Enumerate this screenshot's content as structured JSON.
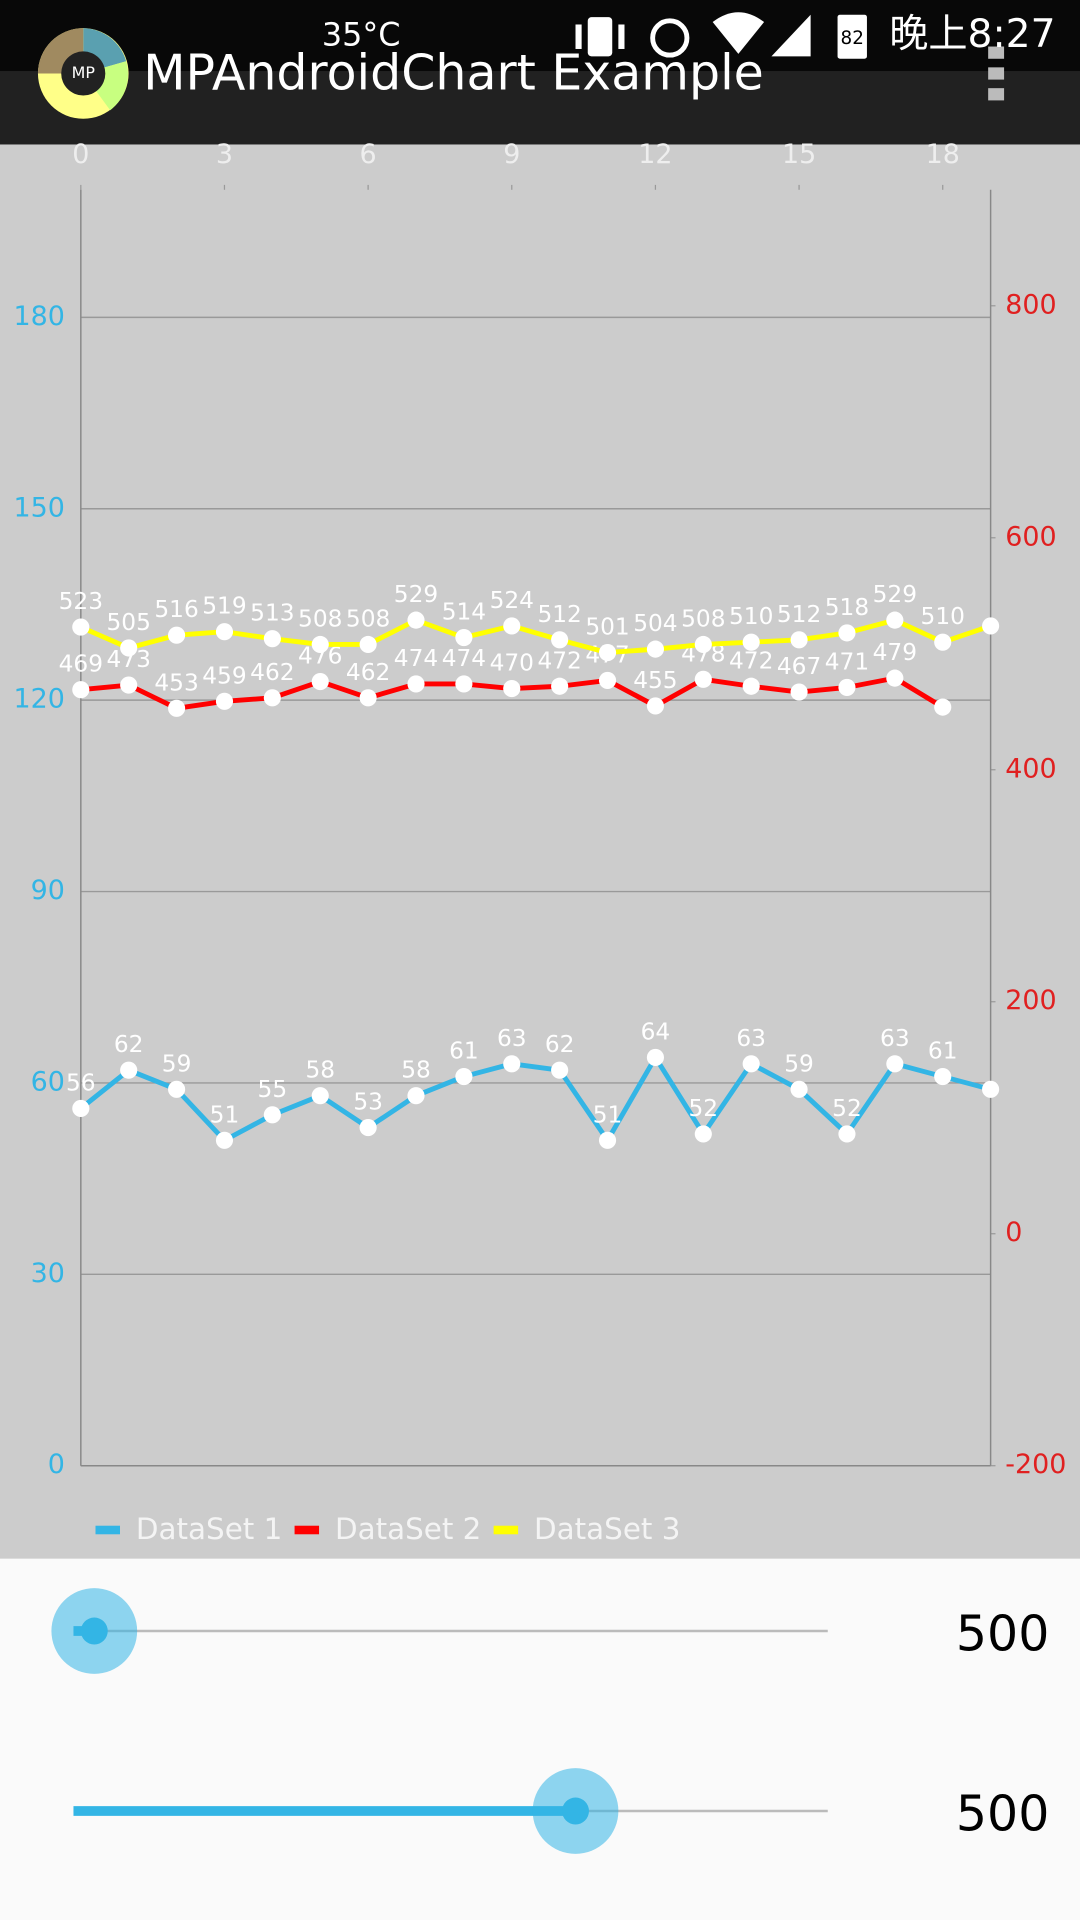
{
  "status_bar": {
    "temperature": "35°C",
    "battery": "82",
    "time": "晚上8:27"
  },
  "app_bar": {
    "logo": "MP",
    "title": "MPAndroidChart Example"
  },
  "chart_data": {
    "type": "line",
    "x": [
      0,
      1,
      2,
      3,
      4,
      5,
      6,
      7,
      8,
      9,
      10,
      11,
      12,
      13,
      14,
      15,
      16,
      17,
      18,
      19
    ],
    "xlim": [
      0,
      19
    ],
    "xticks": [
      0,
      3,
      6,
      9,
      12,
      15,
      18
    ],
    "ylim": [
      0,
      200
    ],
    "yticks": [
      0,
      30,
      60,
      90,
      120,
      150,
      180
    ],
    "y2lim": [
      -200,
      900
    ],
    "y2ticks": [
      -200,
      0,
      200,
      400,
      600,
      800
    ],
    "y_color": "#33b5e5",
    "y2_color": "#e02020",
    "grid": true,
    "legend": "bottom-left",
    "series": [
      {
        "name": "DataSet 1",
        "color": "#33b5e5",
        "axis": "y",
        "values": [
          56,
          62,
          59,
          51,
          55,
          58,
          53,
          58,
          61,
          63,
          62,
          51,
          64,
          52,
          63,
          59,
          52,
          63,
          61,
          59
        ]
      },
      {
        "name": "DataSet 2",
        "color": "#ff0000",
        "axis": "y2",
        "values": [
          469,
          473,
          453,
          459,
          462,
          476,
          462,
          474,
          474,
          470,
          472,
          477,
          455,
          478,
          472,
          467,
          471,
          479,
          454,
          null
        ]
      },
      {
        "name": "DataSet 3",
        "color": "#ffff00",
        "axis": "y2",
        "values": [
          523,
          505,
          516,
          519,
          513,
          508,
          508,
          529,
          514,
          524,
          512,
          501,
          504,
          508,
          510,
          512,
          518,
          529,
          510,
          524
        ]
      }
    ]
  },
  "sliders": [
    {
      "label": "500"
    },
    {
      "label": "500"
    }
  ]
}
